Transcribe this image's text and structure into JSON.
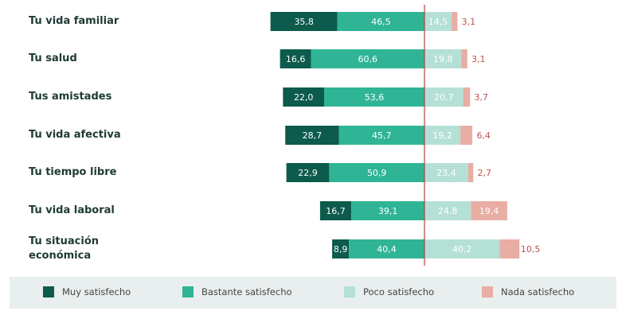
{
  "chart_data": {
    "type": "bar",
    "orientation": "horizontal-diverging",
    "categories": [
      "Tu vida familiar",
      "Tu salud",
      "Tus amistades",
      "Tu vida afectiva",
      "Tu tiempo libre",
      "Tu vida laboral",
      "Tu situación económica"
    ],
    "series": [
      {
        "name": "Muy satisfecho",
        "side": "positive",
        "values": [
          35.8,
          16.6,
          22.0,
          28.7,
          22.9,
          16.7,
          8.9
        ]
      },
      {
        "name": "Bastante satisfecho",
        "side": "positive",
        "values": [
          46.5,
          60.6,
          53.6,
          45.7,
          50.9,
          39.1,
          40.4
        ]
      },
      {
        "name": "Poco satisfecho",
        "side": "negative",
        "values": [
          14.5,
          19.8,
          20.7,
          19.2,
          23.4,
          24.8,
          40.2
        ]
      },
      {
        "name": "Nada satisfecho",
        "side": "negative",
        "values": [
          3.1,
          3.1,
          3.7,
          6.4,
          2.7,
          19.4,
          10.5
        ]
      }
    ],
    "value_labels": [
      [
        "35,8",
        "16,6",
        "22,0",
        "28,7",
        "22,9",
        "16,7",
        "8,9"
      ],
      [
        "46,5",
        "60,6",
        "53,6",
        "45,7",
        "50,9",
        "39,1",
        "40,4"
      ],
      [
        "14,5",
        "19,8",
        "20,7",
        "19,2",
        "23,4",
        "24,8",
        "40,2"
      ],
      [
        "3,1",
        "3,1",
        "3,7",
        "6,4",
        "2,7",
        "19,4",
        "10,5"
      ]
    ],
    "colors": [
      "#0c5b4c",
      "#2fb596",
      "#b5e0d6",
      "#e8ada3"
    ],
    "label_colors": [
      "#ffffff",
      "#ffffff",
      "#ffffff",
      "#c0524a"
    ],
    "divider_color": "#b2433f",
    "legend_position": "bottom",
    "grid": false,
    "title": "",
    "xlabel": "",
    "ylabel": ""
  }
}
